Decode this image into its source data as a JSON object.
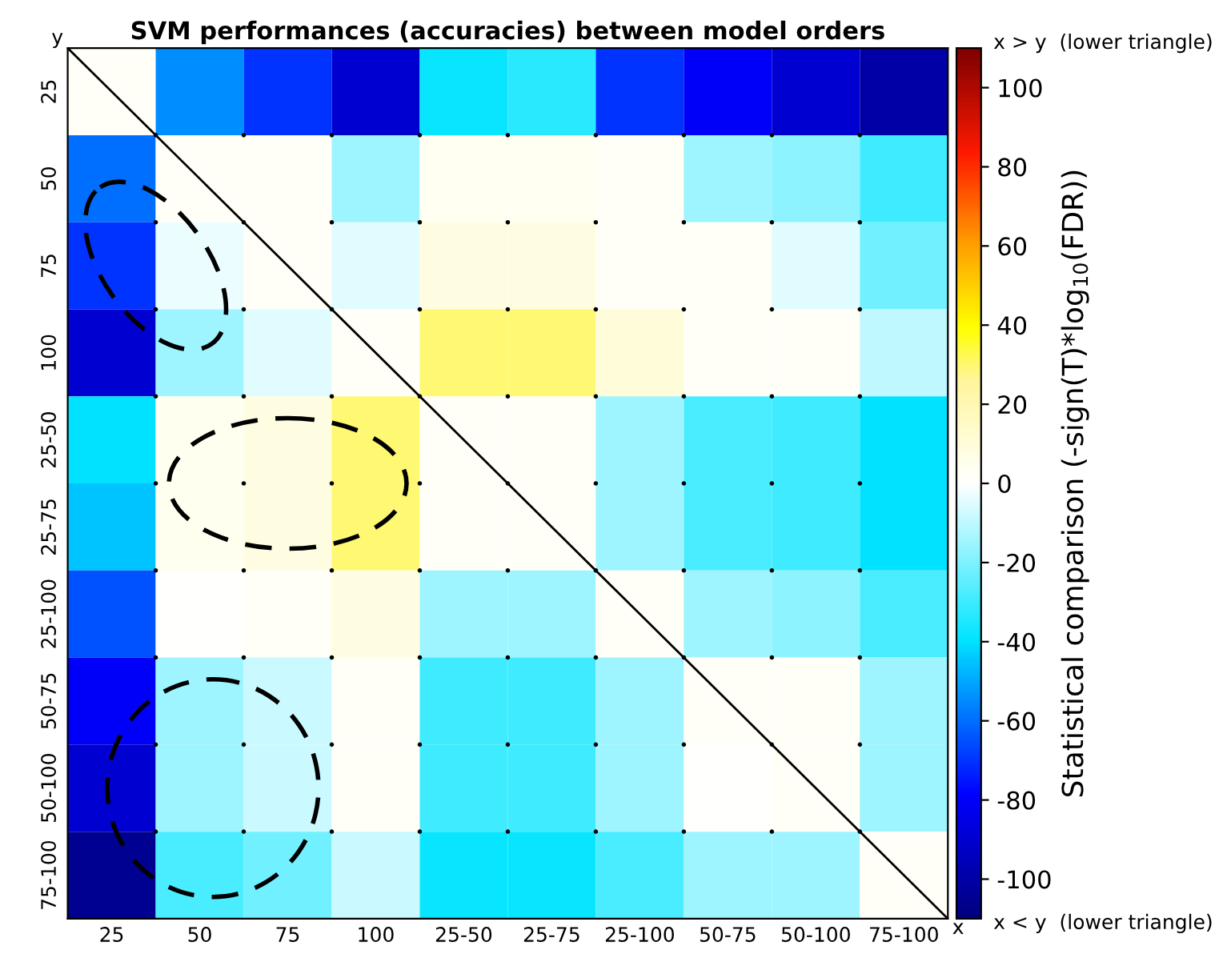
{
  "chart_data": {
    "type": "heatmap",
    "title": "SVM performances (accuracies) between model orders",
    "categories": [
      "25",
      "50",
      "75",
      "100",
      "25-50",
      "25-75",
      "25-100",
      "50-75",
      "50-100",
      "75-100"
    ],
    "y_categories": [
      "25",
      "50",
      "75",
      "100",
      "25-50",
      "25-75",
      "25-100",
      "50-75",
      "50-100",
      "75-100"
    ],
    "cells": [
      [
        2,
        -55,
        -70,
        -90,
        -38,
        -33,
        -70,
        -80,
        -90,
        -100
      ],
      [
        -60,
        2,
        2,
        -15,
        4,
        4,
        2,
        -15,
        -18,
        -30
      ],
      [
        -70,
        -3,
        2,
        -5,
        8,
        8,
        2,
        2,
        -5,
        -22
      ],
      [
        -90,
        -15,
        -5,
        2,
        30,
        30,
        10,
        2,
        2,
        -10
      ],
      [
        -40,
        5,
        8,
        30,
        2,
        2,
        -15,
        -28,
        -30,
        -40
      ],
      [
        -45,
        5,
        8,
        30,
        2,
        2,
        -15,
        -28,
        -30,
        -40
      ],
      [
        -65,
        0,
        2,
        8,
        -15,
        -15,
        2,
        -15,
        -18,
        -28
      ],
      [
        -80,
        -15,
        -8,
        2,
        -30,
        -30,
        -15,
        2,
        2,
        -15
      ],
      [
        -90,
        -15,
        -8,
        2,
        -30,
        -30,
        -15,
        0,
        2,
        -15
      ],
      [
        -105,
        -28,
        -22,
        -8,
        -38,
        -38,
        -28,
        -15,
        -15,
        2
      ]
    ],
    "clim": [
      -110,
      110
    ],
    "cticks": [
      -100,
      -80,
      -60,
      -40,
      -20,
      0,
      20,
      40,
      60,
      80,
      100
    ],
    "clabel": "Statistical comparison (-sign(T)*log$_{10}$(FDR))",
    "annotations": [
      "x > y  (lower triangle)",
      "x < y  (lower triangle)",
      "y",
      "x"
    ]
  }
}
